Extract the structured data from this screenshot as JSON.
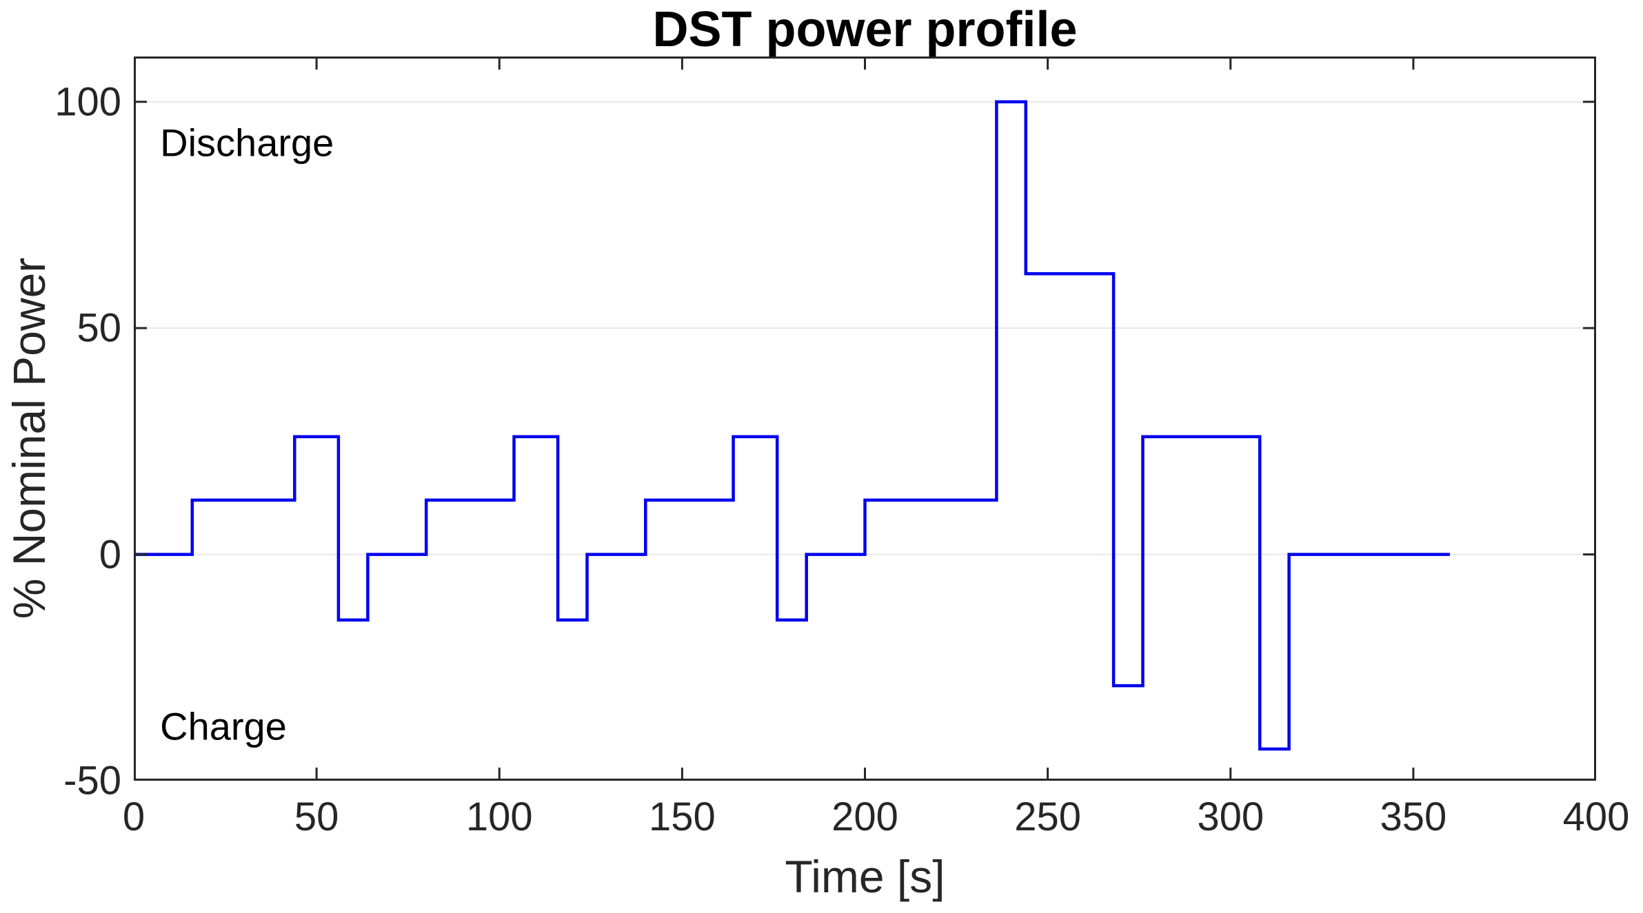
{
  "title": "DST power profile",
  "chart_data": {
    "type": "line",
    "subtype": "step",
    "title": "DST power profile",
    "xlabel": "Time [s]",
    "ylabel": "% Nominal Power",
    "xlim": [
      0,
      400
    ],
    "ylim": [
      -50,
      110
    ],
    "xticks": [
      0,
      50,
      100,
      150,
      200,
      250,
      300,
      350,
      400
    ],
    "yticks": [
      -50,
      0,
      50,
      100
    ],
    "xtick_labels": [
      "0",
      "50",
      "100",
      "150",
      "200",
      "250",
      "300",
      "350",
      "400"
    ],
    "ytick_labels": [
      "-50",
      "0",
      "50",
      "100"
    ],
    "grid": "horizontal-only",
    "legend": "none",
    "box": true,
    "series": [
      {
        "name": "DST power profile",
        "step_breakpoints_s": [
          0,
          16,
          44,
          56,
          64,
          80,
          104,
          116,
          124,
          140,
          164,
          176,
          184,
          200,
          236,
          244,
          268,
          276,
          308,
          316,
          360
        ],
        "step_values_pct_nominal_power": [
          0,
          12,
          26,
          -14.5,
          0,
          12,
          26,
          -14.5,
          0,
          12,
          26,
          -14.5,
          0,
          12,
          100,
          62,
          -29,
          26,
          -43,
          0
        ]
      }
    ],
    "annotations": [
      {
        "text": "Discharge",
        "x_s": 7.2,
        "y_pct": 91
      },
      {
        "text": "Charge",
        "x_s": 7.2,
        "y_pct": -38
      }
    ]
  },
  "colors": {
    "line": "#0000ee",
    "axis": "#262626",
    "grid": "#e8e8e8",
    "title_text": "#000000",
    "label_text": "#262626",
    "background": "#ffffff"
  }
}
